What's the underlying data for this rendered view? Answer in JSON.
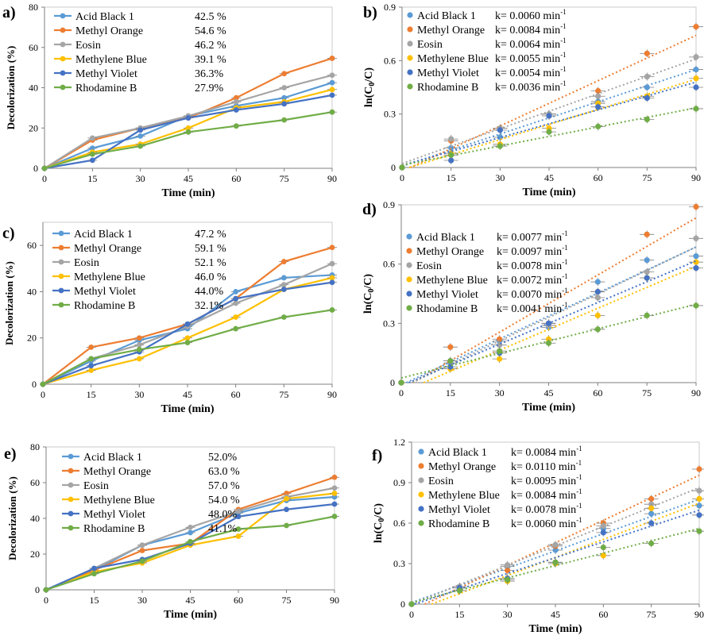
{
  "chart_data": [
    {
      "panel": "a)",
      "type": "line",
      "xlabel": "Time (min)",
      "ylabel": "Decolorization (%)",
      "x": [
        0,
        15,
        30,
        45,
        60,
        75,
        90
      ],
      "xlim": [
        0,
        90
      ],
      "ylim": [
        0,
        80
      ],
      "xticks": [
        "0",
        "15",
        "30",
        "45",
        "60",
        "75",
        "90"
      ],
      "yticks": [
        "0",
        "20",
        "40",
        "60",
        "80"
      ],
      "legend": [
        {
          "name": "Acid Black 1",
          "value": "42.5 %"
        },
        {
          "name": "Methyl Orange",
          "value": "54.6 %"
        },
        {
          "name": "Eosin",
          "value": "46.2 %"
        },
        {
          "name": "Methylene Blue",
          "value": "39.1 %"
        },
        {
          "name": "Methyl Violet",
          "value": "36.3%"
        },
        {
          "name": "Rhodamine B",
          "value": "27.9%"
        }
      ],
      "series": [
        {
          "name": "Acid Black 1",
          "values": [
            0,
            10,
            16,
            26,
            31,
            35,
            42.5
          ]
        },
        {
          "name": "Methyl Orange",
          "values": [
            0,
            14,
            20,
            25,
            35,
            47,
            54.6
          ]
        },
        {
          "name": "Eosin",
          "values": [
            0,
            15,
            20,
            26,
            33,
            40,
            46.2
          ]
        },
        {
          "name": "Methylene Blue",
          "values": [
            0,
            8,
            12,
            20,
            30,
            33,
            39.1
          ]
        },
        {
          "name": "Methyl Violet",
          "values": [
            0,
            4,
            19,
            25,
            29,
            32,
            36.3
          ]
        },
        {
          "name": "Rhodamine B",
          "values": [
            0,
            7,
            11,
            18,
            21,
            24,
            27.9
          ]
        }
      ]
    },
    {
      "panel": "b)",
      "type": "scatter",
      "xlabel": "Time (min)",
      "ylabel": "ln(C0/C)",
      "x": [
        0,
        15,
        30,
        45,
        60,
        75,
        90
      ],
      "xlim": [
        0,
        90
      ],
      "ylim": [
        0,
        0.9
      ],
      "xticks": [
        "0",
        "15",
        "30",
        "45",
        "60",
        "75",
        "90"
      ],
      "yticks": [
        "0",
        "0.3",
        "0.6",
        "0.9"
      ],
      "legend": [
        {
          "name": "Acid Black 1",
          "value": "k= 0.0060 min-1"
        },
        {
          "name": "Methyl Orange",
          "value": "k= 0.0084 min-1"
        },
        {
          "name": "Eosin",
          "value": "k= 0.0064 min-1"
        },
        {
          "name": "Methylene Blue",
          "value": "k= 0.0055 min-1"
        },
        {
          "name": "Methyl Violet",
          "value": "k= 0.0054 min-1"
        },
        {
          "name": "Rhodamine B",
          "value": "k= 0.0036 min-1"
        }
      ],
      "series": [
        {
          "name": "Acid Black 1",
          "values": [
            0,
            0.11,
            0.17,
            0.3,
            0.37,
            0.45,
            0.55
          ]
        },
        {
          "name": "Methyl Orange",
          "values": [
            0,
            0.15,
            0.22,
            0.29,
            0.43,
            0.64,
            0.79
          ]
        },
        {
          "name": "Eosin",
          "values": [
            0,
            0.16,
            0.22,
            0.3,
            0.4,
            0.51,
            0.62
          ]
        },
        {
          "name": "Methylene Blue",
          "values": [
            0,
            0.08,
            0.13,
            0.22,
            0.36,
            0.4,
            0.5
          ]
        },
        {
          "name": "Methyl Violet",
          "values": [
            0,
            0.04,
            0.21,
            0.29,
            0.34,
            0.39,
            0.45
          ]
        },
        {
          "name": "Rhodamine B",
          "values": [
            0,
            0.07,
            0.12,
            0.2,
            0.23,
            0.27,
            0.33
          ]
        }
      ]
    },
    {
      "panel": "c)",
      "type": "line",
      "xlabel": "Time (min)",
      "ylabel": "Decolorization (%)",
      "x": [
        0,
        15,
        30,
        45,
        60,
        75,
        90
      ],
      "xlim": [
        0,
        90
      ],
      "ylim": [
        0,
        70
      ],
      "xticks": [
        "0",
        "15",
        "30",
        "45",
        "60",
        "75",
        "90"
      ],
      "yticks": [
        "0",
        "20",
        "40",
        "60"
      ],
      "legend": [
        {
          "name": "Acid Black 1",
          "value": "47.2 %"
        },
        {
          "name": "Methyl Orange",
          "value": "59.1 %"
        },
        {
          "name": "Eosin",
          "value": "52.1 %"
        },
        {
          "name": "Methylene Blue",
          "value": "46.0 %"
        },
        {
          "name": "Methyl Violet",
          "value": "44.0%"
        },
        {
          "name": "Rhodamine B",
          "value": "32.1%"
        }
      ],
      "series": [
        {
          "name": "Acid Black 1",
          "values": [
            0,
            10,
            19,
            24,
            40,
            46,
            47.2
          ]
        },
        {
          "name": "Methyl Orange",
          "values": [
            0,
            16,
            20,
            26,
            37,
            53,
            59.1
          ]
        },
        {
          "name": "Eosin",
          "values": [
            0,
            11,
            17,
            25,
            35,
            43,
            52.1
          ]
        },
        {
          "name": "Methylene Blue",
          "values": [
            0,
            6,
            11,
            20,
            29,
            41,
            46
          ]
        },
        {
          "name": "Methyl Violet",
          "values": [
            0,
            8,
            14,
            26,
            37,
            41,
            44
          ]
        },
        {
          "name": "Rhodamine B",
          "values": [
            0,
            11,
            15,
            18,
            24,
            29,
            32.1
          ]
        }
      ]
    },
    {
      "panel": "d)",
      "type": "scatter",
      "xlabel": "Time (min)",
      "ylabel": "ln(C0/C)",
      "x": [
        0,
        15,
        30,
        45,
        60,
        75,
        90
      ],
      "xlim": [
        0,
        90
      ],
      "ylim": [
        0,
        0.9
      ],
      "xticks": [
        "0",
        "15",
        "30",
        "45",
        "60",
        "75",
        "90"
      ],
      "yticks": [
        "0",
        "0.3",
        "0.6",
        "0.9"
      ],
      "legend": [
        {
          "name": "Acid Black 1",
          "value": "k= 0.0077 min-1"
        },
        {
          "name": "Methyl Orange",
          "value": "k= 0.0097 min-1"
        },
        {
          "name": "Eosin",
          "value": "k= 0.0078 min-1"
        },
        {
          "name": "Methylene Blue",
          "value": "k= 0.0072 min-1"
        },
        {
          "name": "Methyl Violet",
          "value": "k= 0.0070 min-1"
        },
        {
          "name": "Rhodamine B",
          "value": "k= 0.0041 min-1"
        }
      ],
      "series": [
        {
          "name": "Acid Black 1",
          "values": [
            0,
            0.1,
            0.21,
            0.28,
            0.51,
            0.62,
            0.64
          ]
        },
        {
          "name": "Methyl Orange",
          "values": [
            0,
            0.18,
            0.22,
            0.3,
            0.46,
            0.75,
            0.89
          ]
        },
        {
          "name": "Eosin",
          "values": [
            0,
            0.11,
            0.19,
            0.29,
            0.43,
            0.56,
            0.73
          ]
        },
        {
          "name": "Methylene Blue",
          "values": [
            0,
            0.07,
            0.12,
            0.22,
            0.34,
            0.53,
            0.61
          ]
        },
        {
          "name": "Methyl Violet",
          "values": [
            0,
            0.08,
            0.15,
            0.3,
            0.46,
            0.53,
            0.58
          ]
        },
        {
          "name": "Rhodamine B",
          "values": [
            0,
            0.11,
            0.16,
            0.2,
            0.27,
            0.34,
            0.39
          ]
        }
      ]
    },
    {
      "panel": "e)",
      "type": "line",
      "xlabel": "Time (min)",
      "ylabel": "Decolorization (%)",
      "x": [
        0,
        15,
        30,
        45,
        60,
        75,
        90
      ],
      "xlim": [
        0,
        90
      ],
      "ylim": [
        0,
        80
      ],
      "xticks": [
        "0",
        "15",
        "30",
        "45",
        "60",
        "75",
        "90"
      ],
      "yticks": [
        "0",
        "20",
        "40",
        "60",
        "80"
      ],
      "legend": [
        {
          "name": "Acid Black 1",
          "value": "52.0%"
        },
        {
          "name": "Methyl Orange",
          "value": "63.0 %"
        },
        {
          "name": "Eosin",
          "value": "57.0 %"
        },
        {
          "name": "Methylene Blue",
          "value": "54.0 %"
        },
        {
          "name": "Methyl Violet",
          "value": "48.0%"
        },
        {
          "name": "Rhodamine B",
          "value": "41.1%"
        }
      ],
      "series": [
        {
          "name": "Acid Black 1",
          "values": [
            0,
            11,
            25,
            32,
            43,
            50,
            52
          ]
        },
        {
          "name": "Methyl Orange",
          "values": [
            0,
            11,
            22,
            26,
            45,
            54,
            63
          ]
        },
        {
          "name": "Eosin",
          "values": [
            0,
            12,
            25,
            35,
            44,
            52,
            57
          ]
        },
        {
          "name": "Methylene Blue",
          "values": [
            0,
            10,
            15,
            25,
            30,
            51,
            54
          ]
        },
        {
          "name": "Methyl Violet",
          "values": [
            0,
            12,
            17,
            26,
            41,
            45,
            48
          ]
        },
        {
          "name": "Rhodamine B",
          "values": [
            0,
            9,
            16,
            27,
            34,
            36,
            41.1
          ]
        }
      ]
    },
    {
      "panel": "f)",
      "type": "scatter",
      "xlabel": "Time (min)",
      "ylabel": "ln(C0/C)",
      "x": [
        0,
        15,
        30,
        45,
        60,
        75,
        90
      ],
      "xlim": [
        0,
        90
      ],
      "ylim": [
        0,
        1.2
      ],
      "xticks": [
        "0",
        "15",
        "30",
        "45",
        "60",
        "75",
        "90"
      ],
      "yticks": [
        "0",
        "0.3",
        "0.6",
        "0.9",
        "1.2"
      ],
      "legend": [
        {
          "name": "Acid Black 1",
          "value": "k= 0.0084 min-1"
        },
        {
          "name": "Methyl Orange",
          "value": "k= 0.0110 min-1"
        },
        {
          "name": "Eosin",
          "value": "k= 0.0095 min-1"
        },
        {
          "name": "Methylene Blue",
          "value": "k= 0.0084 min-1"
        },
        {
          "name": "Methyl Violet",
          "value": "k= 0.0078 min-1"
        },
        {
          "name": "Rhodamine B",
          "value": "k= 0.0060 min-1"
        }
      ],
      "series": [
        {
          "name": "Acid Black 1",
          "values": [
            0,
            0.12,
            0.28,
            0.4,
            0.56,
            0.67,
            0.73
          ]
        },
        {
          "name": "Methyl Orange",
          "values": [
            0,
            0.12,
            0.25,
            0.43,
            0.6,
            0.78,
            1.0
          ]
        },
        {
          "name": "Eosin",
          "values": [
            0,
            0.13,
            0.29,
            0.44,
            0.58,
            0.74,
            0.84
          ]
        },
        {
          "name": "Methylene Blue",
          "values": [
            0,
            0.1,
            0.17,
            0.3,
            0.36,
            0.71,
            0.78
          ]
        },
        {
          "name": "Methyl Violet",
          "values": [
            0,
            0.12,
            0.19,
            0.31,
            0.53,
            0.6,
            0.66
          ]
        },
        {
          "name": "Rhodamine B",
          "values": [
            0,
            0.1,
            0.18,
            0.31,
            0.42,
            0.45,
            0.54
          ]
        }
      ]
    }
  ],
  "colors": {
    "Acid Black 1": "#5b9bd5",
    "Methyl Orange": "#ed7d31",
    "Eosin": "#a5a5a5",
    "Methylene Blue": "#ffc000",
    "Methyl Violet": "#4472c4",
    "Rhodamine B": "#70ad47"
  }
}
